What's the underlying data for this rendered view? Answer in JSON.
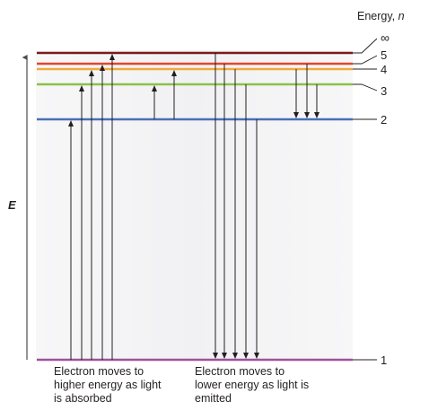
{
  "heading": {
    "energy_label": "Energy, ",
    "n_label": "n"
  },
  "axis": {
    "label": "E"
  },
  "levels": [
    {
      "n": 1,
      "label": "1",
      "color": "#a0509d"
    },
    {
      "n": 2,
      "label": "2",
      "color": "#4a6fb5"
    },
    {
      "n": 3,
      "label": "3",
      "color": "#8cc04b"
    },
    {
      "n": 4,
      "label": "4",
      "color": "#f2a93b"
    },
    {
      "n": 5,
      "label": "5",
      "color": "#e0462f"
    },
    {
      "n": "infinity",
      "label": "∞",
      "color": "#7a1a1a"
    }
  ],
  "transitions": {
    "absorption": [
      {
        "from": 1,
        "to": 2
      },
      {
        "from": 1,
        "to": 3
      },
      {
        "from": 1,
        "to": 4
      },
      {
        "from": 1,
        "to": 5
      },
      {
        "from": 1,
        "to": "infinity"
      },
      {
        "from": 2,
        "to": 3
      },
      {
        "from": 2,
        "to": 4
      }
    ],
    "emission": [
      {
        "from": "infinity",
        "to": 1
      },
      {
        "from": 5,
        "to": 1
      },
      {
        "from": 4,
        "to": 1
      },
      {
        "from": 3,
        "to": 1
      },
      {
        "from": 2,
        "to": 1
      },
      {
        "from": 4,
        "to": 2
      },
      {
        "from": 5,
        "to": 2
      },
      {
        "from": 3,
        "to": 2
      }
    ]
  },
  "captions": {
    "absorbed": "Electron moves to higher energy as light is absorbed",
    "emitted": "Electron moves to lower energy as light is emitted"
  },
  "colors": {
    "arrow": "#231f20",
    "axis": "#4d4d4d",
    "panel": "#f4f4f5"
  }
}
